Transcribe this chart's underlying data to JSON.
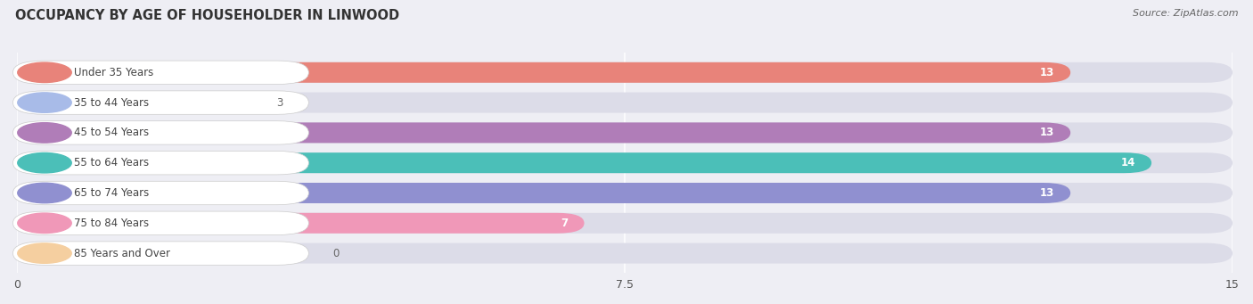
{
  "title": "OCCUPANCY BY AGE OF HOUSEHOLDER IN LINWOOD",
  "source": "Source: ZipAtlas.com",
  "categories": [
    "Under 35 Years",
    "35 to 44 Years",
    "45 to 54 Years",
    "55 to 64 Years",
    "65 to 74 Years",
    "75 to 84 Years",
    "85 Years and Over"
  ],
  "values": [
    13,
    3,
    13,
    14,
    13,
    7,
    0
  ],
  "bar_colors": [
    "#E8837A",
    "#A8BBE8",
    "#B07DB8",
    "#4BBFB8",
    "#9090D0",
    "#F098B8",
    "#F5CFA0"
  ],
  "xlim": [
    0,
    15
  ],
  "xticks": [
    0,
    7.5,
    15
  ],
  "background_color": "#eeeef4",
  "bar_bg_color": "#dcdce8",
  "pill_color": "#ffffff",
  "label_color": "#444444",
  "value_color_inside": "#ffffff",
  "value_color_outside": "#666666",
  "title_fontsize": 10.5,
  "label_fontsize": 8.5,
  "value_fontsize": 8.5,
  "source_fontsize": 8.0
}
